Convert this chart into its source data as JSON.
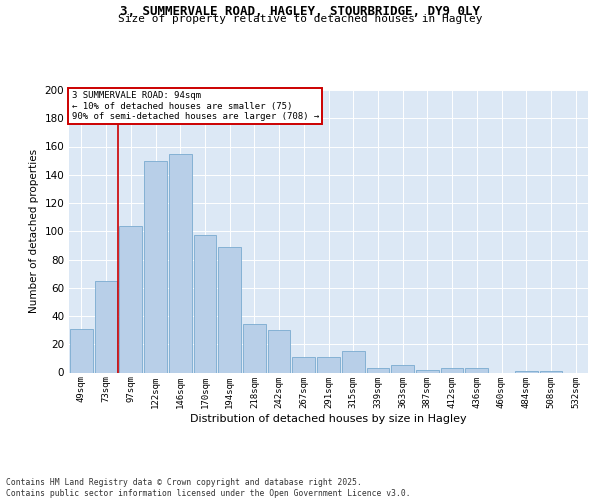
{
  "title_line1": "3, SUMMERVALE ROAD, HAGLEY, STOURBRIDGE, DY9 0LY",
  "title_line2": "Size of property relative to detached houses in Hagley",
  "xlabel": "Distribution of detached houses by size in Hagley",
  "ylabel": "Number of detached properties",
  "categories": [
    "49sqm",
    "73sqm",
    "97sqm",
    "122sqm",
    "146sqm",
    "170sqm",
    "194sqm",
    "218sqm",
    "242sqm",
    "267sqm",
    "291sqm",
    "315sqm",
    "339sqm",
    "363sqm",
    "387sqm",
    "412sqm",
    "436sqm",
    "460sqm",
    "484sqm",
    "508sqm",
    "532sqm"
  ],
  "values": [
    31,
    65,
    104,
    150,
    155,
    97,
    89,
    34,
    30,
    11,
    11,
    15,
    3,
    5,
    2,
    3,
    3,
    0,
    1,
    1,
    0
  ],
  "bar_color": "#b8cfe8",
  "bar_edgecolor": "#7aaad0",
  "vline_x": 1.5,
  "vline_color": "#cc0000",
  "annotation_text": "3 SUMMERVALE ROAD: 94sqm\n← 10% of detached houses are smaller (75)\n90% of semi-detached houses are larger (708) →",
  "annotation_box_color": "#ffffff",
  "annotation_box_edgecolor": "#cc0000",
  "ylim": [
    0,
    200
  ],
  "yticks": [
    0,
    20,
    40,
    60,
    80,
    100,
    120,
    140,
    160,
    180,
    200
  ],
  "background_color": "#dce8f5",
  "footer_text": "Contains HM Land Registry data © Crown copyright and database right 2025.\nContains public sector information licensed under the Open Government Licence v3.0."
}
